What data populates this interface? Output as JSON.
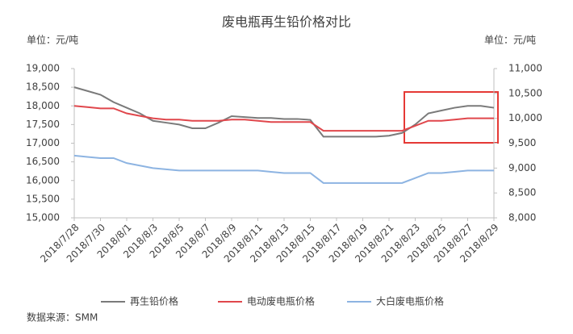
{
  "chart_data": {
    "type": "line",
    "title": "废电瓶再生铅价格对比",
    "y_unit_label": "单位：元/吨",
    "y2_unit_label": "单位：元/吨",
    "source": "数据来源：SMM",
    "categories": [
      "2018/7/28",
      null,
      "2018/7/30",
      null,
      "2018/8/1",
      null,
      "2018/8/3",
      null,
      "2018/8/5",
      null,
      "2018/8/7",
      null,
      "2018/8/9",
      null,
      "2018/8/11",
      null,
      "2018/8/13",
      null,
      "2018/8/15",
      null,
      "2018/8/17",
      null,
      "2018/8/19",
      null,
      "2018/8/21",
      null,
      "2018/8/23",
      null,
      "2018/8/25",
      null,
      "2018/8/27",
      null,
      "2018/8/29"
    ],
    "ylim": [
      15000,
      19000
    ],
    "yticks": [
      {
        "value": 15000,
        "label": "15,000"
      },
      {
        "value": 15500,
        "label": "15,500"
      },
      {
        "value": 16000,
        "label": "16,000"
      },
      {
        "value": 16500,
        "label": "16,500"
      },
      {
        "value": 17000,
        "label": "17,000"
      },
      {
        "value": 17500,
        "label": "17,500"
      },
      {
        "value": 18000,
        "label": "18,000"
      },
      {
        "value": 18500,
        "label": "18,500"
      },
      {
        "value": 19000,
        "label": "19,000"
      }
    ],
    "y2lim": [
      8000,
      11000
    ],
    "y2ticks": [
      {
        "value": 8000,
        "label": "8,000"
      },
      {
        "value": 8500,
        "label": "8,500"
      },
      {
        "value": 9000,
        "label": "9,000"
      },
      {
        "value": 9500,
        "label": "9,500"
      },
      {
        "value": 10000,
        "label": "10,000"
      },
      {
        "value": 10500,
        "label": "10,500"
      },
      {
        "value": 11000,
        "label": "11,000"
      }
    ],
    "grid": false,
    "legend": "bottom",
    "series": [
      {
        "name": "再生铅价格",
        "color": "#7a7a7a",
        "values": [
          18500,
          18400,
          18300,
          18100,
          17950,
          17800,
          17600,
          17550,
          17500,
          17400,
          17400,
          17550,
          17725,
          17700,
          17675,
          17675,
          17650,
          17650,
          17625,
          17175,
          17175,
          17175,
          17175,
          17175,
          17200,
          17275,
          17500,
          17800,
          17875,
          17950,
          18000,
          18000,
          17950
        ]
      },
      {
        "name": "电动废电瓶价格",
        "color": "#e0474c",
        "axis": "y2",
        "values": [
          10250,
          10225,
          10200,
          10200,
          10100,
          10050,
          10000,
          9975,
          9975,
          9950,
          9950,
          9950,
          9975,
          9975,
          9950,
          9925,
          9925,
          9925,
          9925,
          9750,
          9750,
          9750,
          9750,
          9750,
          9750,
          9750,
          9850,
          9950,
          9950,
          9975,
          10000,
          10000,
          10000
        ]
      },
      {
        "name": "大白废电瓶价格",
        "color": "#8db4e2",
        "axis": "y2",
        "values": [
          9250,
          9225,
          9200,
          9200,
          9100,
          9050,
          9000,
          8975,
          8950,
          8950,
          8950,
          8950,
          8950,
          8950,
          8950,
          8925,
          8900,
          8900,
          8900,
          8700,
          8700,
          8700,
          8700,
          8700,
          8700,
          8700,
          8800,
          8900,
          8900,
          8925,
          8950,
          8950,
          8950
        ]
      }
    ]
  }
}
